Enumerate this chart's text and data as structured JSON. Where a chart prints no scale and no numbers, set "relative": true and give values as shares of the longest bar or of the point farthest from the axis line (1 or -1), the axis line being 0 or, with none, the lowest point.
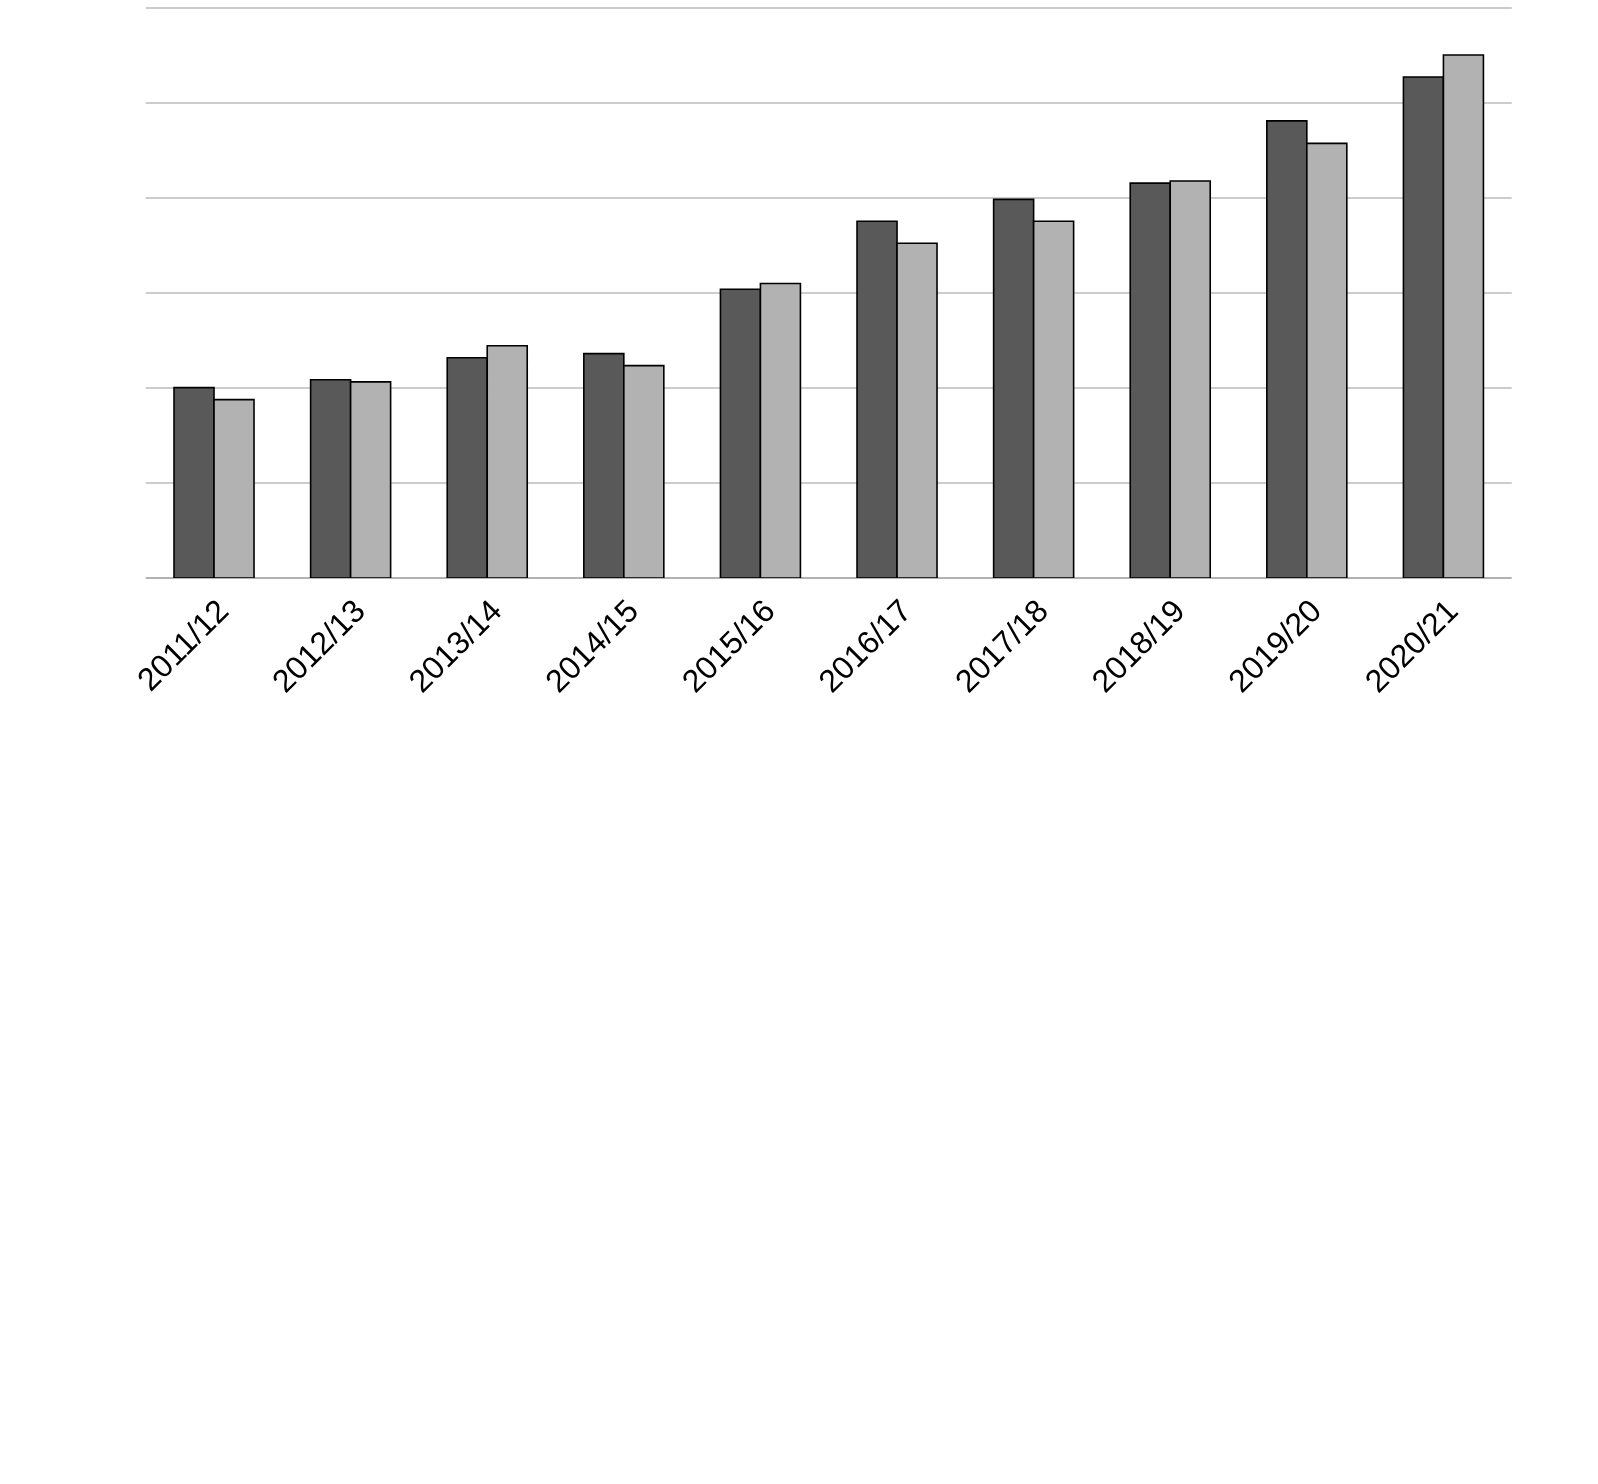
{
  "chart_data": {
    "type": "bar",
    "relative": true,
    "grid": "y",
    "categories": [
      "2011/12",
      "2012/13",
      "2013/14",
      "2014/15",
      "2015/16",
      "2016/17",
      "2017/18",
      "2018/19",
      "2019/20",
      "2020/21"
    ],
    "series": [
      {
        "color": "#595959",
        "values": [
          0.364,
          0.379,
          0.421,
          0.429,
          0.552,
          0.682,
          0.724,
          0.755,
          0.874,
          0.958
        ]
      },
      {
        "color": "#b2b2b2",
        "values": [
          0.341,
          0.375,
          0.444,
          0.406,
          0.563,
          0.64,
          0.682,
          0.759,
          0.831,
          1
        ]
      }
    ]
  }
}
